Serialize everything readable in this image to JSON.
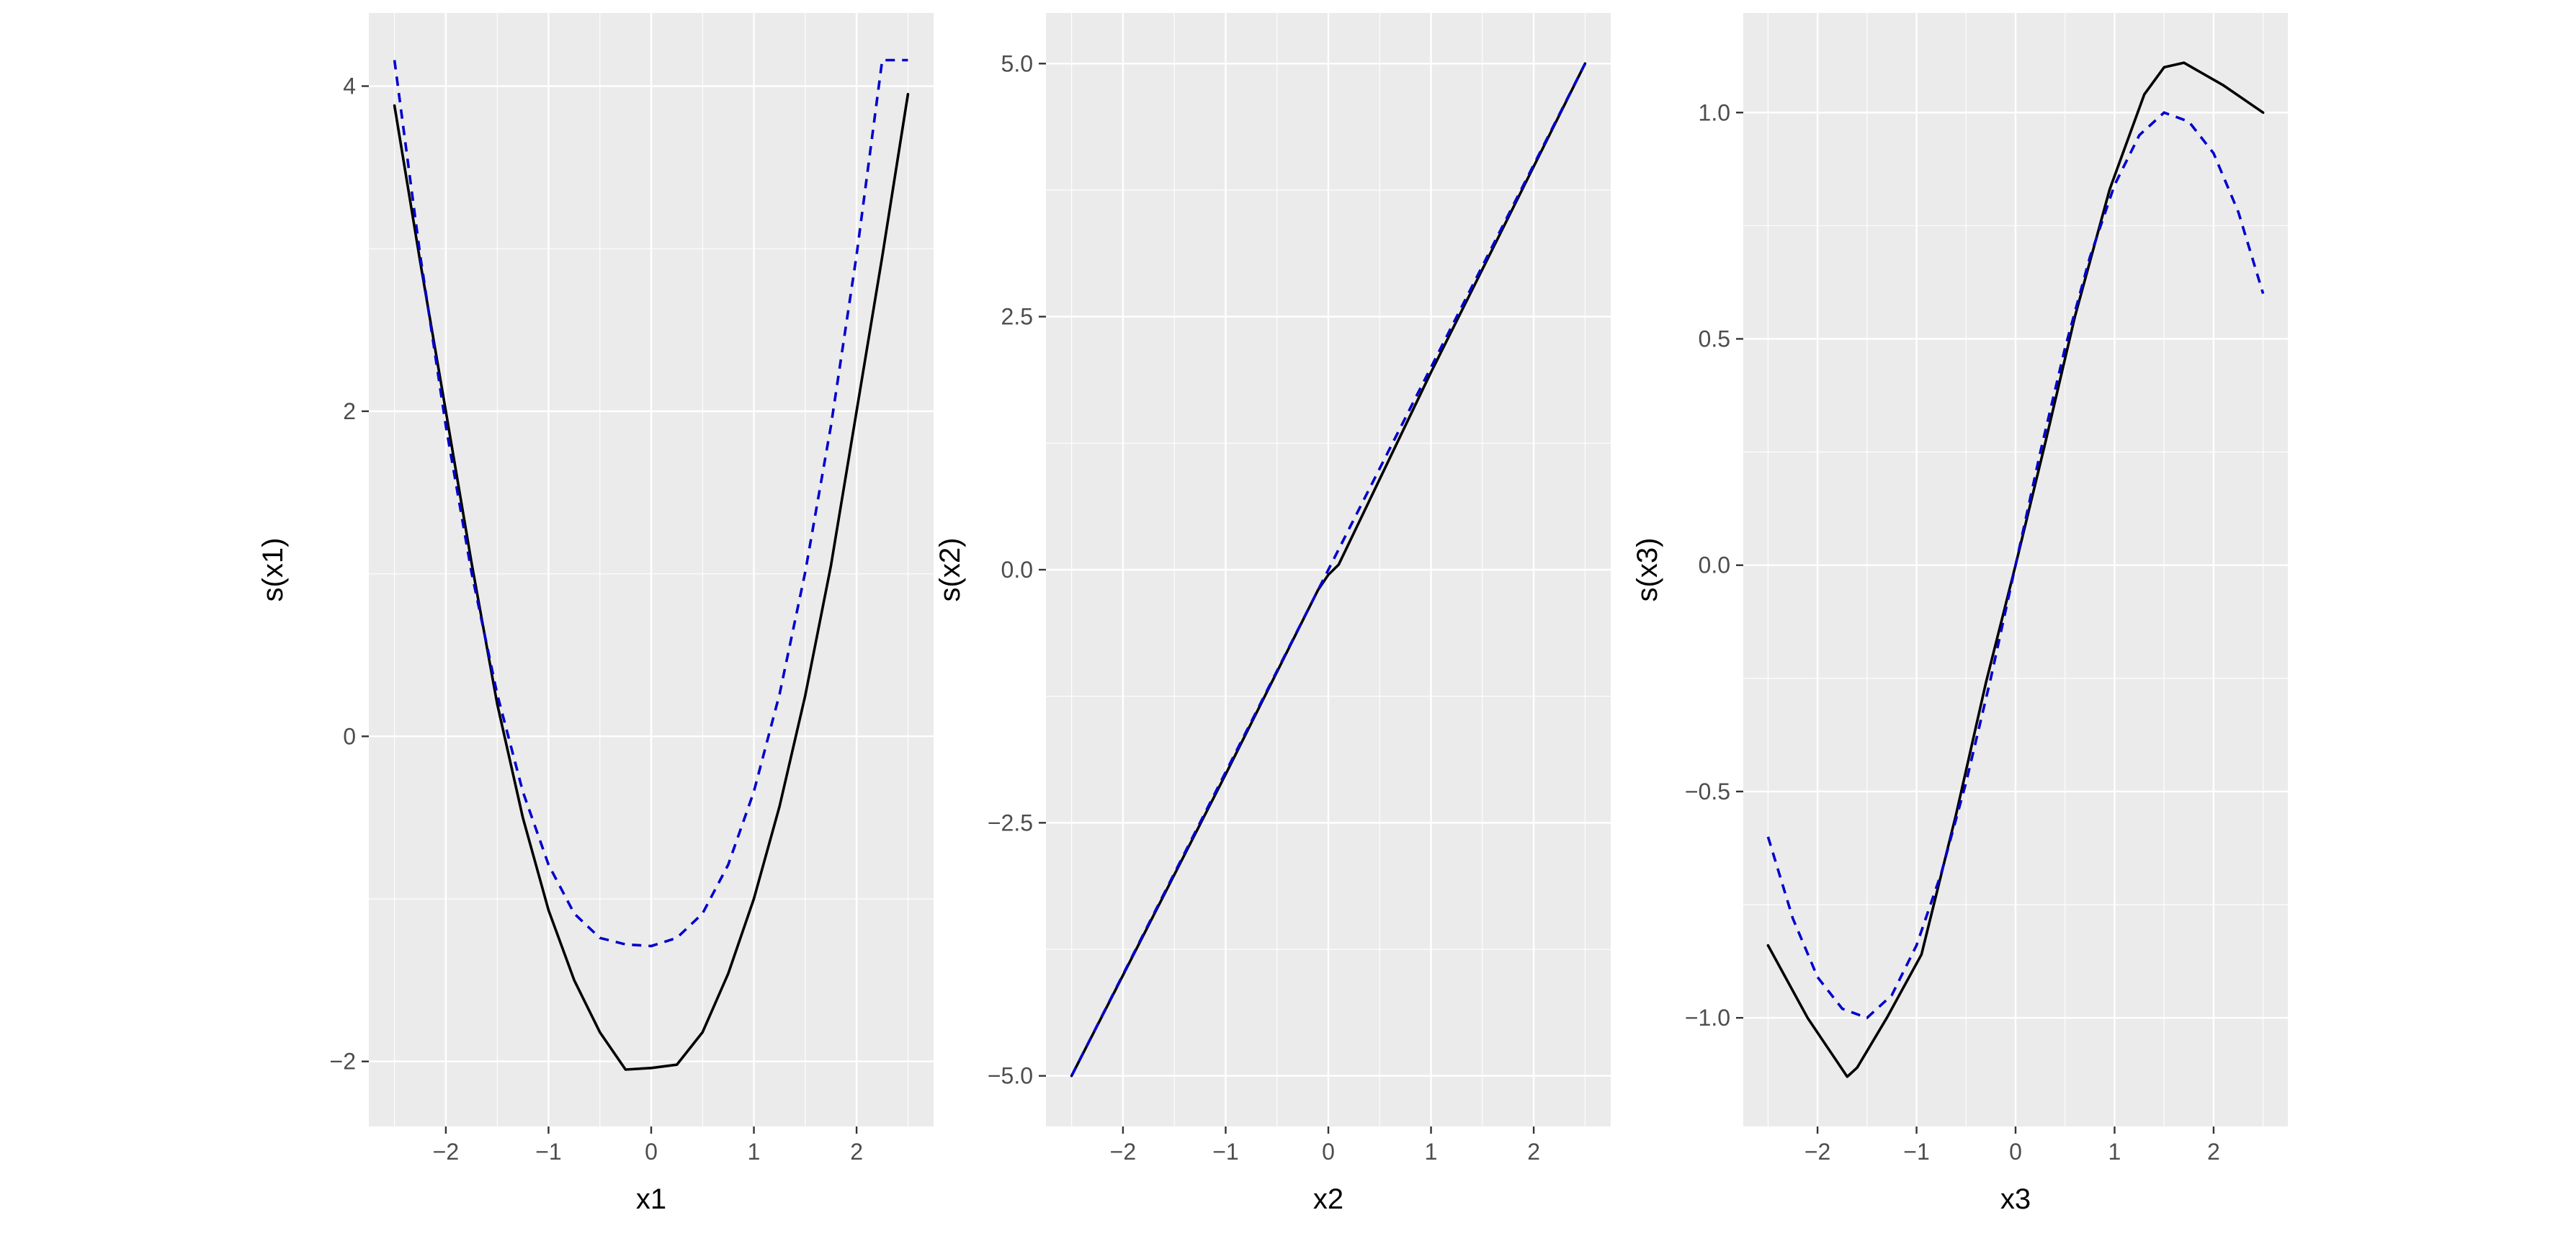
{
  "chart_data": [
    {
      "type": "line",
      "xlabel": "x1",
      "ylabel": "s(x1)",
      "xlim": [
        -2.75,
        2.75
      ],
      "ylim": [
        -2.4,
        4.45
      ],
      "xticks": [
        -2,
        -1,
        0,
        1,
        2
      ],
      "xtick_labels": [
        "−2",
        "−1",
        "0",
        "1",
        "2"
      ],
      "yticks": [
        -2,
        0,
        2,
        4
      ],
      "ytick_labels": [
        "−2",
        "0",
        "2",
        "4"
      ],
      "grid": true,
      "series": [
        {
          "style": "solid",
          "color": "#000000",
          "x": [
            -2.5,
            -2.25,
            -2.0,
            -1.75,
            -1.5,
            -1.25,
            -1.0,
            -0.75,
            -0.5,
            -0.25,
            0.0,
            0.25,
            0.5,
            0.75,
            1.0,
            1.25,
            1.5,
            1.75,
            2.0,
            2.25,
            2.5
          ],
          "y": [
            3.88,
            2.92,
            2.0,
            1.07,
            0.2,
            -0.5,
            -1.07,
            -1.5,
            -1.82,
            -2.05,
            -2.04,
            -2.02,
            -1.82,
            -1.46,
            -1.0,
            -0.43,
            0.25,
            1.05,
            2.0,
            2.95,
            3.95
          ]
        },
        {
          "style": "dashed",
          "color": "#0000CC",
          "x": [
            -2.5,
            -2.25,
            -2.0,
            -1.75,
            -1.5,
            -1.25,
            -1.0,
            -0.75,
            -0.5,
            -0.25,
            0.0,
            0.25,
            0.5,
            0.75,
            1.0,
            1.25,
            1.5,
            1.75,
            2.0,
            2.25,
            2.5
          ],
          "y": [
            4.16,
            2.96,
            1.91,
            1.01,
            0.26,
            -0.34,
            -0.79,
            -1.09,
            -1.24,
            -1.28,
            -1.29,
            -1.24,
            -1.09,
            -0.79,
            -0.34,
            0.26,
            1.01,
            1.91,
            2.96,
            4.16,
            4.16
          ]
        }
      ]
    },
    {
      "type": "line",
      "xlabel": "x2",
      "ylabel": "s(x2)",
      "xlim": [
        -2.75,
        2.75
      ],
      "ylim": [
        -5.5,
        5.5
      ],
      "xticks": [
        -2,
        -1,
        0,
        1,
        2
      ],
      "xtick_labels": [
        "−2",
        "−1",
        "0",
        "1",
        "2"
      ],
      "yticks": [
        -5.0,
        -2.5,
        0.0,
        2.5,
        5.0
      ],
      "ytick_labels": [
        "−5.0",
        "−2.5",
        "0.0",
        "2.5",
        "5.0"
      ],
      "grid": true,
      "series": [
        {
          "style": "solid",
          "color": "#000000",
          "x": [
            -2.5,
            -1.0,
            -0.1,
            0.0,
            0.1,
            1.0,
            2.5
          ],
          "y": [
            -5.0,
            -2.02,
            -0.2,
            -0.05,
            0.05,
            1.95,
            5.0
          ]
        },
        {
          "style": "dashed",
          "color": "#0000CC",
          "x": [
            -2.5,
            2.5
          ],
          "y": [
            -5.0,
            5.0
          ]
        }
      ]
    },
    {
      "type": "line",
      "xlabel": "x3",
      "ylabel": "s(x3)",
      "xlim": [
        -2.75,
        2.75
      ],
      "ylim": [
        -1.24,
        1.22
      ],
      "xticks": [
        -2,
        -1,
        0,
        1,
        2
      ],
      "xtick_labels": [
        "−2",
        "−1",
        "0",
        "1",
        "2"
      ],
      "yticks": [
        -1.0,
        -0.5,
        0.0,
        0.5,
        1.0
      ],
      "ytick_labels": [
        "−1.0",
        "−0.5",
        "0.0",
        "0.5",
        "1.0"
      ],
      "grid": true,
      "series": [
        {
          "style": "solid",
          "color": "#000000",
          "x": [
            -2.5,
            -2.1,
            -1.7,
            -1.6,
            -1.3,
            -0.95,
            -0.6,
            -0.3,
            0.0,
            0.3,
            0.6,
            0.95,
            1.3,
            1.5,
            1.7,
            2.1,
            2.5
          ],
          "y": [
            -0.84,
            -1.0,
            -1.13,
            -1.11,
            -1.0,
            -0.86,
            -0.55,
            -0.26,
            0.0,
            0.27,
            0.55,
            0.83,
            1.04,
            1.1,
            1.11,
            1.06,
            1.0
          ],
          "note_free": true
        },
        {
          "style": "dashed",
          "color": "#0000CC",
          "x": [
            -2.5,
            -2.25,
            -2.0,
            -1.75,
            -1.5,
            -1.25,
            -1.0,
            -0.75,
            -0.5,
            -0.25,
            0.0,
            0.25,
            0.5,
            0.75,
            1.0,
            1.25,
            1.5,
            1.75,
            2.0,
            2.25,
            2.5
          ],
          "y": [
            -0.6,
            -0.78,
            -0.91,
            -0.98,
            -1.0,
            -0.95,
            -0.84,
            -0.68,
            -0.48,
            -0.25,
            0.0,
            0.25,
            0.48,
            0.68,
            0.84,
            0.95,
            1.0,
            0.98,
            0.91,
            0.78,
            0.6
          ]
        }
      ]
    }
  ]
}
